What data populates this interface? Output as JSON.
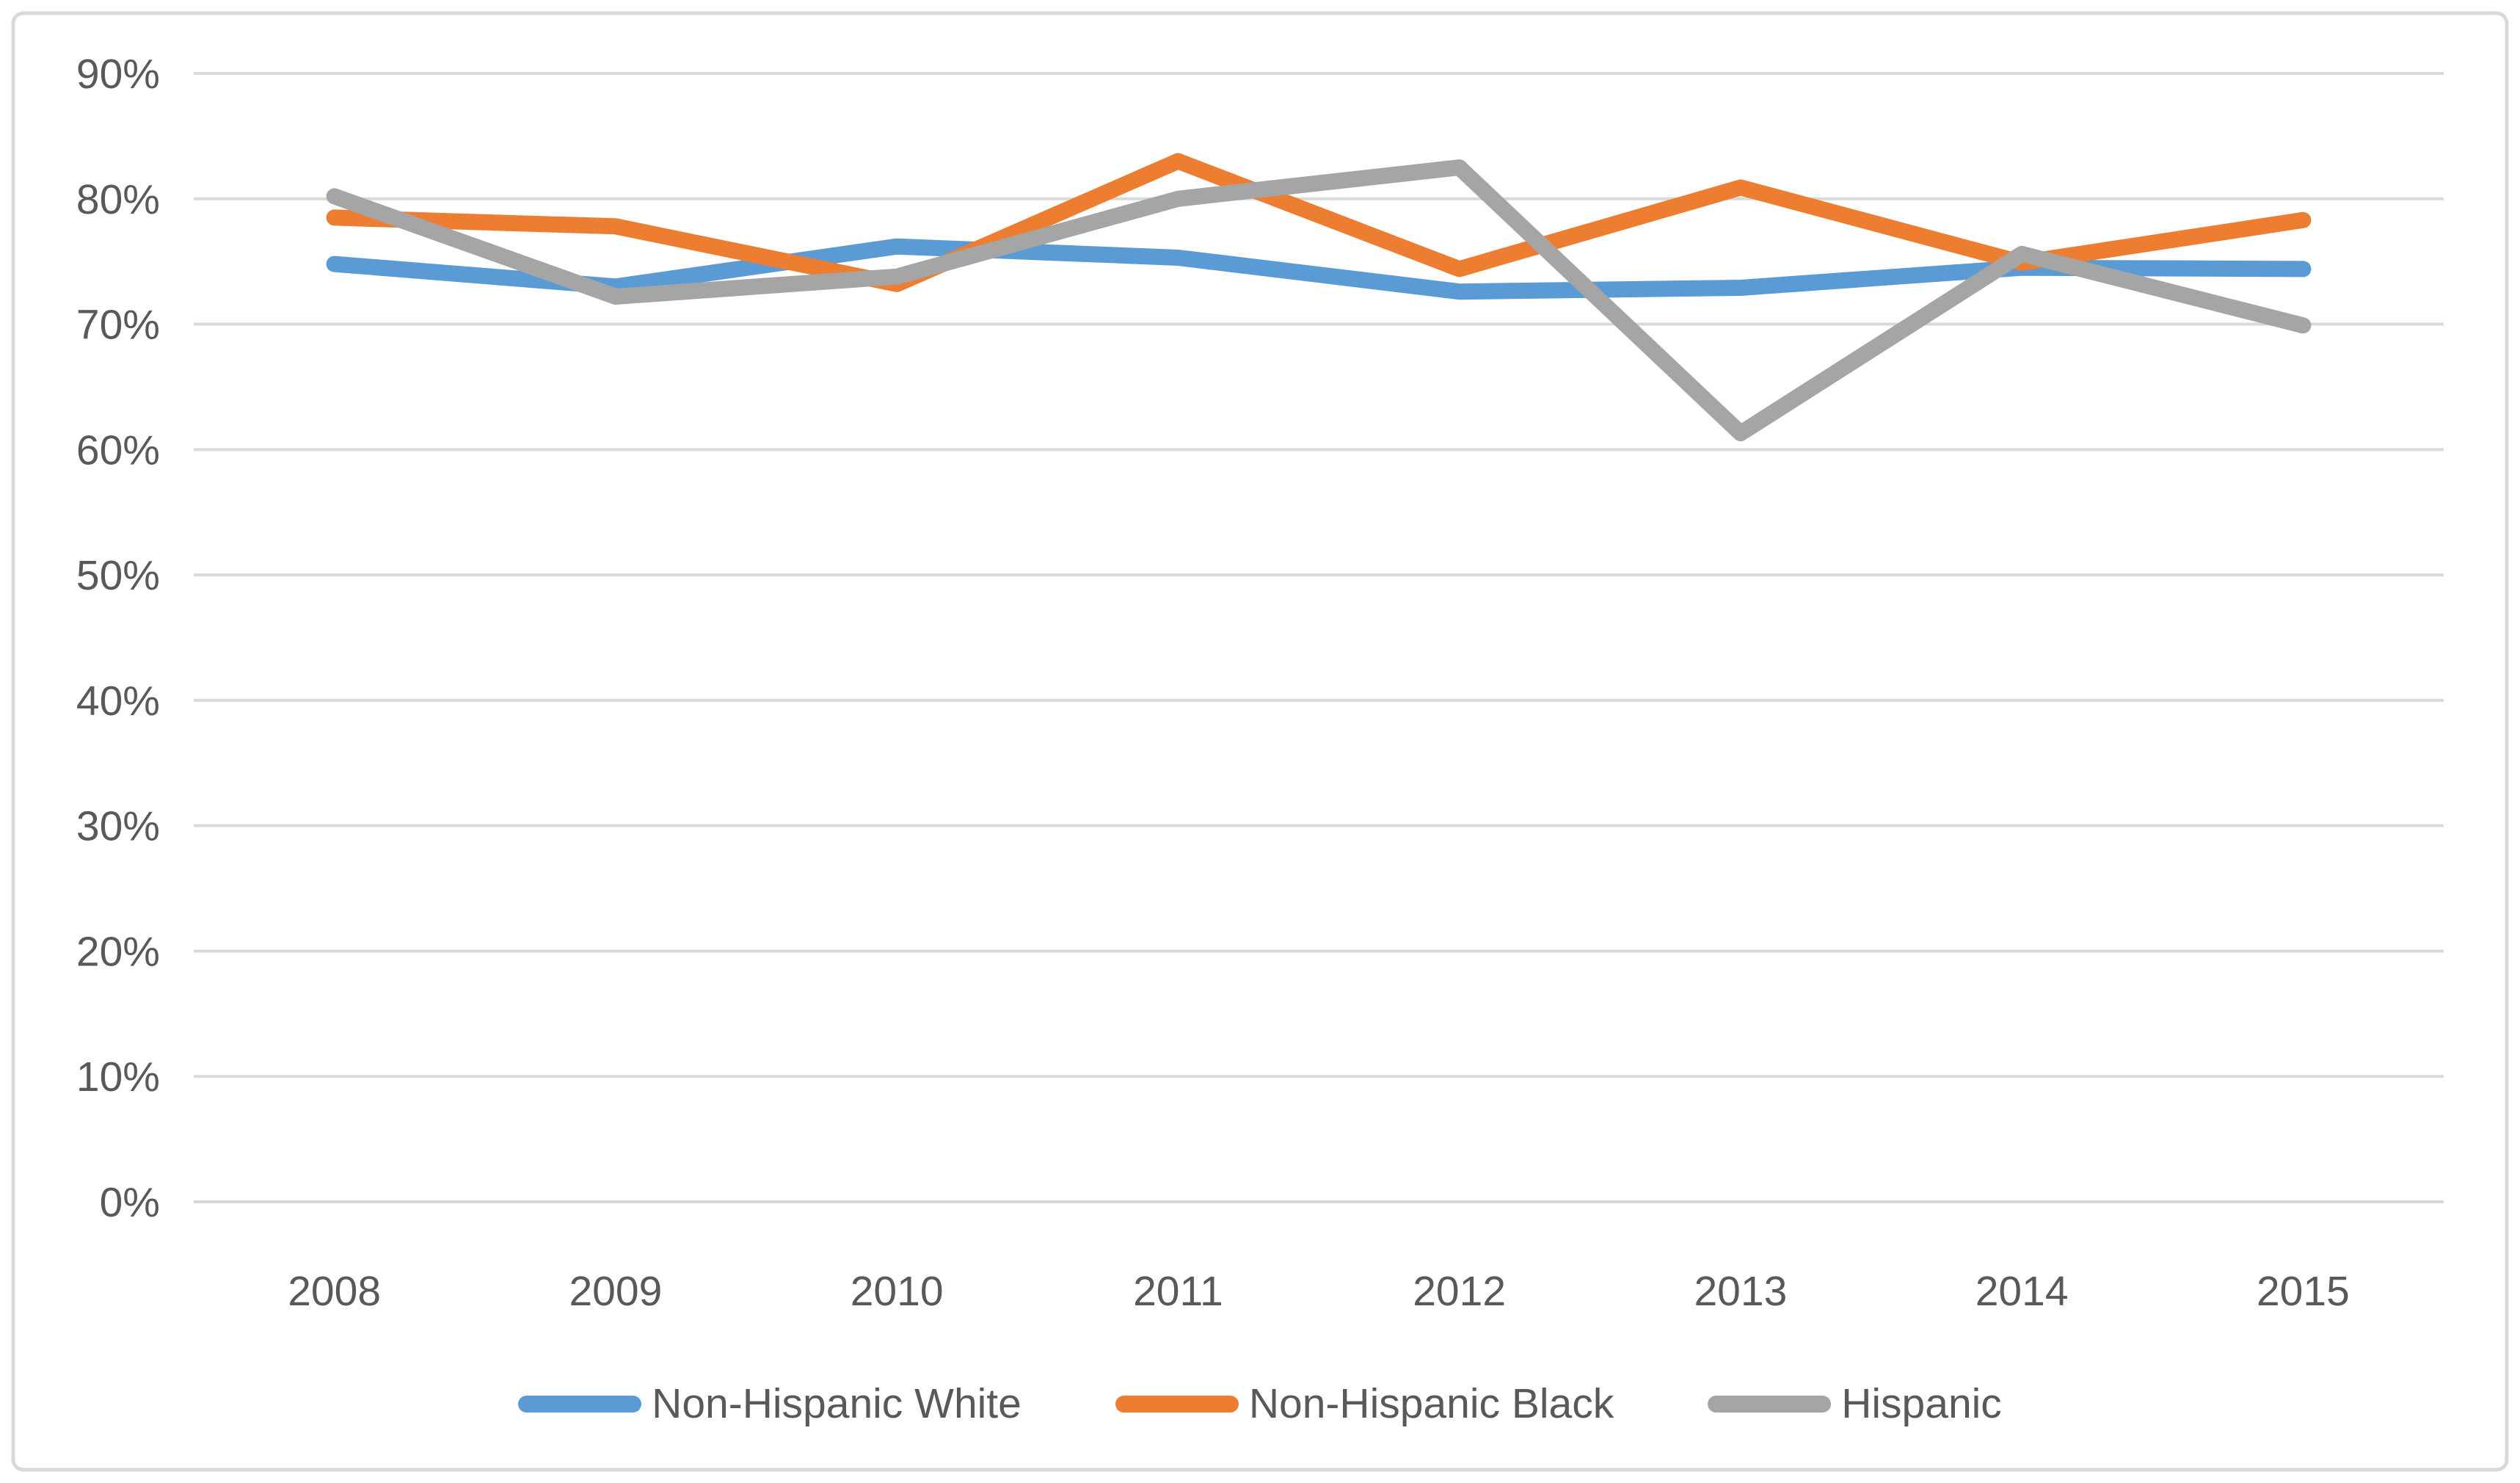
{
  "chart_data": {
    "type": "line",
    "title": "",
    "categories": [
      "2008",
      "2009",
      "2010",
      "2011",
      "2012",
      "2013",
      "2014",
      "2015"
    ],
    "series": [
      {
        "name": "Non-Hispanic White",
        "color": "#5B9BD5",
        "values": [
          74.8,
          73.0,
          76.2,
          75.3,
          72.6,
          72.9,
          74.5,
          74.4
        ]
      },
      {
        "name": "Non-Hispanic Black",
        "color": "#ED7D31",
        "values": [
          78.5,
          77.8,
          73.2,
          83.0,
          74.4,
          80.9,
          74.9,
          78.3
        ]
      },
      {
        "name": "Hispanic",
        "color": "#A5A5A5",
        "values": [
          80.2,
          72.2,
          73.8,
          80.0,
          82.5,
          61.3,
          75.6,
          69.9
        ]
      }
    ],
    "xlabel": "",
    "ylabel": "",
    "ylim": [
      0,
      90
    ],
    "ytick_step": 10,
    "ytick_labels": [
      "0%",
      "10%",
      "20%",
      "30%",
      "40%",
      "50%",
      "60%",
      "70%",
      "80%",
      "90%"
    ],
    "grid": true,
    "legend_position": "bottom"
  },
  "styles": {
    "grid_color": "#D9D9D9",
    "border_color": "#D9D9D9",
    "axis_text_color": "#595959",
    "background_color": "#FFFFFF",
    "line_width": 22
  }
}
